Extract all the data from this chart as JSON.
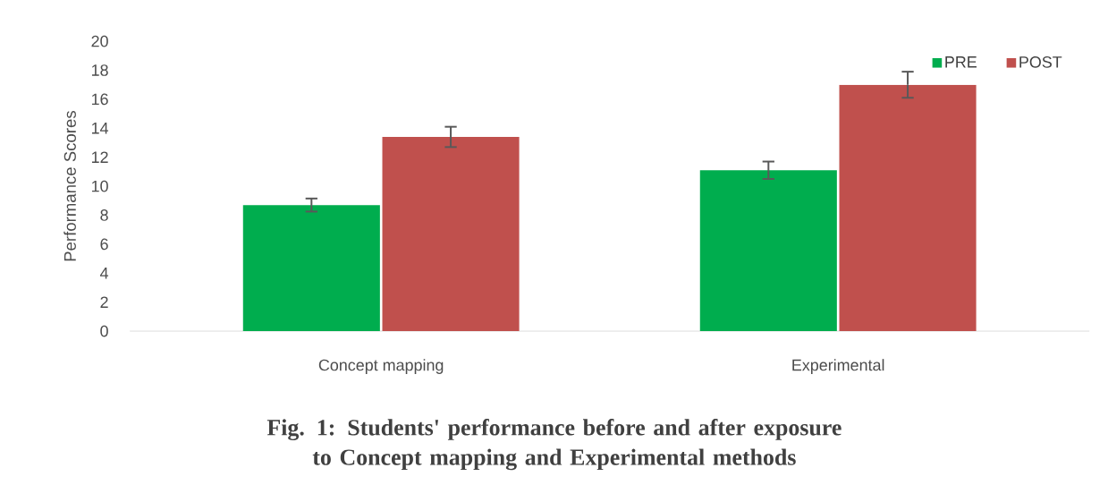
{
  "chart_data": {
    "type": "bar",
    "title": "Fig. 1: Students' performance before and after exposure to Concept mapping and Experimental methods",
    "ylabel": "Performance Scores",
    "categories": [
      "Concept mapping",
      "Experimental"
    ],
    "series": [
      {
        "name": "PRE",
        "color": "#00ad4e",
        "values": [
          8.7,
          11.1
        ],
        "errors": [
          0.45,
          0.6
        ]
      },
      {
        "name": "POST",
        "color": "#c0504d",
        "values": [
          13.4,
          17.0
        ],
        "errors": [
          0.7,
          0.9
        ]
      }
    ],
    "ylim": [
      0,
      20
    ],
    "yticks": [
      0,
      2,
      4,
      6,
      8,
      10,
      12,
      14,
      16,
      18,
      20
    ],
    "grid": false,
    "legend": "top right"
  }
}
